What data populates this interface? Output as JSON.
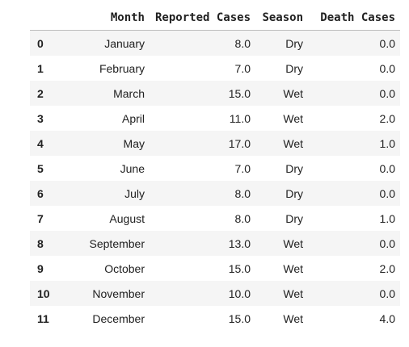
{
  "table": {
    "columns": [
      "Month",
      "Reported Cases",
      "Season",
      "Death Cases"
    ],
    "index_header": "",
    "rows": [
      {
        "index": "0",
        "month": "January",
        "reported": "8.0",
        "season": "Dry",
        "death": "0.0"
      },
      {
        "index": "1",
        "month": "February",
        "reported": "7.0",
        "season": "Dry",
        "death": "0.0"
      },
      {
        "index": "2",
        "month": "March",
        "reported": "15.0",
        "season": "Wet",
        "death": "0.0"
      },
      {
        "index": "3",
        "month": "April",
        "reported": "11.0",
        "season": "Wet",
        "death": "2.0"
      },
      {
        "index": "4",
        "month": "May",
        "reported": "17.0",
        "season": "Wet",
        "death": "1.0"
      },
      {
        "index": "5",
        "month": "June",
        "reported": "7.0",
        "season": "Dry",
        "death": "0.0"
      },
      {
        "index": "6",
        "month": "July",
        "reported": "8.0",
        "season": "Dry",
        "death": "0.0"
      },
      {
        "index": "7",
        "month": "August",
        "reported": "8.0",
        "season": "Dry",
        "death": "1.0"
      },
      {
        "index": "8",
        "month": "September",
        "reported": "13.0",
        "season": "Wet",
        "death": "0.0"
      },
      {
        "index": "9",
        "month": "October",
        "reported": "15.0",
        "season": "Wet",
        "death": "2.0"
      },
      {
        "index": "10",
        "month": "November",
        "reported": "10.0",
        "season": "Wet",
        "death": "0.0"
      },
      {
        "index": "11",
        "month": "December",
        "reported": "15.0",
        "season": "Wet",
        "death": "4.0"
      }
    ]
  },
  "colors": {
    "stripe": "#f5f5f5",
    "header_rule": "#bdbdbd",
    "text": "#212121"
  }
}
